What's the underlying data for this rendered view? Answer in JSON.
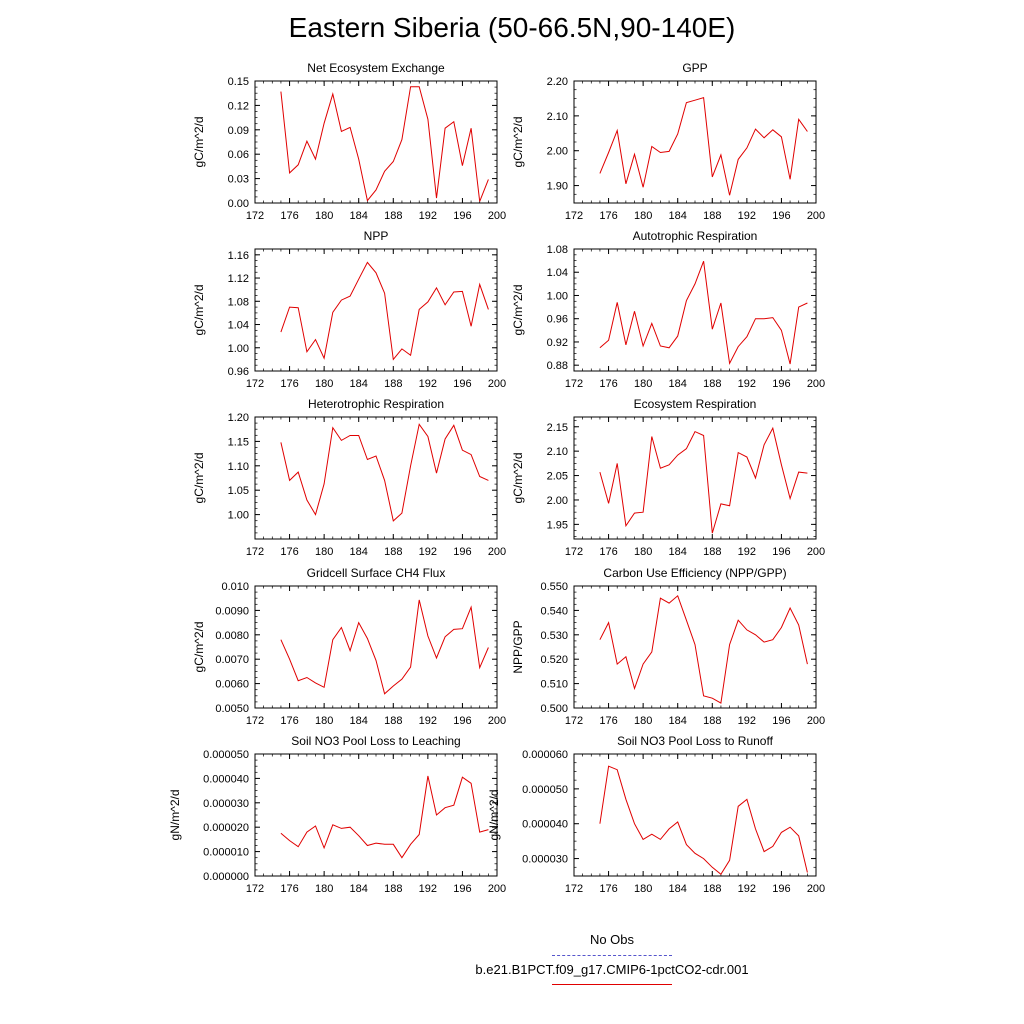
{
  "title": "Eastern Siberia (50-66.5N,90-140E)",
  "line_color": "#e00000",
  "legend": [
    {
      "label": "No Obs",
      "color": "#5555cc",
      "style": "dashed"
    },
    {
      "label": "b.e21.B1PCT.f09_g17.CMIP6-1pctCO2-cdr.001",
      "color": "#e00000",
      "style": "solid"
    }
  ],
  "chart_data": [
    {
      "type": "line",
      "title": "Net Ecosystem Exchange",
      "ylabel": "gC/m^2/d",
      "xlim": [
        172,
        200
      ],
      "xticks": [
        "172",
        "176",
        "180",
        "184",
        "188",
        "192",
        "196",
        "200"
      ],
      "ylim": [
        0,
        0.15
      ],
      "yticks": [
        "0.00",
        "0.03",
        "0.06",
        "0.09",
        "0.12",
        "0.15"
      ],
      "x": [
        175,
        176,
        177,
        178,
        179,
        180,
        181,
        182,
        183,
        184,
        185,
        186,
        187,
        188,
        189,
        190,
        191,
        192,
        193,
        194,
        195,
        196,
        197,
        198,
        199
      ],
      "series": [
        {
          "values": [
            0.137,
            0.037,
            0.047,
            0.076,
            0.054,
            0.098,
            0.134,
            0.088,
            0.093,
            0.054,
            0.003,
            0.016,
            0.039,
            0.051,
            0.078,
            0.143,
            0.143,
            0.103,
            0.006,
            0.092,
            0.1,
            0.046,
            0.092,
            0.002,
            0.029
          ]
        }
      ]
    },
    {
      "type": "line",
      "title": "GPP",
      "ylabel": "gC/m^2/d",
      "xlim": [
        172,
        200
      ],
      "xticks": [
        "172",
        "176",
        "180",
        "184",
        "188",
        "192",
        "196",
        "200"
      ],
      "ylim": [
        1.85,
        2.2
      ],
      "yticks": [
        "1.90",
        "2.00",
        "2.10",
        "2.20"
      ],
      "x": [
        175,
        176,
        177,
        178,
        179,
        180,
        181,
        182,
        183,
        184,
        185,
        186,
        187,
        188,
        189,
        190,
        191,
        192,
        193,
        194,
        195,
        196,
        197,
        198,
        199
      ],
      "series": [
        {
          "values": [
            1.935,
            1.995,
            2.058,
            1.905,
            1.99,
            1.895,
            2.012,
            1.995,
            1.998,
            2.048,
            2.138,
            2.145,
            2.152,
            1.925,
            1.988,
            1.872,
            1.975,
            2.008,
            2.062,
            2.037,
            2.06,
            2.04,
            1.918,
            2.09,
            2.055
          ]
        }
      ]
    },
    {
      "type": "line",
      "title": "NPP",
      "ylabel": "gC/m^2/d",
      "xlim": [
        172,
        200
      ],
      "xticks": [
        "172",
        "176",
        "180",
        "184",
        "188",
        "192",
        "196",
        "200"
      ],
      "ylim": [
        0.96,
        1.17
      ],
      "yticks": [
        "0.96",
        "1.00",
        "1.04",
        "1.08",
        "1.12",
        "1.16"
      ],
      "x": [
        175,
        176,
        177,
        178,
        179,
        180,
        181,
        182,
        183,
        184,
        185,
        186,
        187,
        188,
        189,
        190,
        191,
        192,
        193,
        194,
        195,
        196,
        197,
        198,
        199
      ],
      "series": [
        {
          "values": [
            1.027,
            1.07,
            1.069,
            0.993,
            1.014,
            0.982,
            1.061,
            1.082,
            1.089,
            1.118,
            1.147,
            1.129,
            1.094,
            0.98,
            0.998,
            0.987,
            1.066,
            1.079,
            1.103,
            1.074,
            1.096,
            1.097,
            1.037,
            1.109,
            1.066
          ]
        }
      ]
    },
    {
      "type": "line",
      "title": "Autotrophic Respiration",
      "ylabel": "gC/m^2/d",
      "xlim": [
        172,
        200
      ],
      "xticks": [
        "172",
        "176",
        "180",
        "184",
        "188",
        "192",
        "196",
        "200"
      ],
      "ylim": [
        0.87,
        1.08
      ],
      "yticks": [
        "0.88",
        "0.92",
        "0.96",
        "1.00",
        "1.04",
        "1.08"
      ],
      "x": [
        175,
        176,
        177,
        178,
        179,
        180,
        181,
        182,
        183,
        184,
        185,
        186,
        187,
        188,
        189,
        190,
        191,
        192,
        193,
        194,
        195,
        196,
        197,
        198,
        199
      ],
      "series": [
        {
          "values": [
            0.91,
            0.923,
            0.988,
            0.915,
            0.973,
            0.913,
            0.952,
            0.913,
            0.91,
            0.93,
            0.991,
            1.02,
            1.059,
            0.942,
            0.987,
            0.883,
            0.912,
            0.929,
            0.96,
            0.96,
            0.962,
            0.94,
            0.882,
            0.98,
            0.987
          ]
        }
      ]
    },
    {
      "type": "line",
      "title": "Heterotrophic Respiration",
      "ylabel": "gC/m^2/d",
      "xlim": [
        172,
        200
      ],
      "xticks": [
        "172",
        "176",
        "180",
        "184",
        "188",
        "192",
        "196",
        "200"
      ],
      "ylim": [
        0.95,
        1.2
      ],
      "yticks": [
        "1.00",
        "1.05",
        "1.10",
        "1.15",
        "1.20"
      ],
      "x": [
        175,
        176,
        177,
        178,
        179,
        180,
        181,
        182,
        183,
        184,
        185,
        186,
        187,
        188,
        189,
        190,
        191,
        192,
        193,
        194,
        195,
        196,
        197,
        198,
        199
      ],
      "series": [
        {
          "values": [
            1.148,
            1.07,
            1.087,
            1.03,
            1.0,
            1.063,
            1.178,
            1.152,
            1.162,
            1.162,
            1.113,
            1.12,
            1.07,
            0.987,
            1.003,
            1.1,
            1.185,
            1.16,
            1.085,
            1.155,
            1.183,
            1.132,
            1.123,
            1.078,
            1.07
          ]
        }
      ]
    },
    {
      "type": "line",
      "title": "Ecosystem Respiration",
      "ylabel": "gC/m^2/d",
      "xlim": [
        172,
        200
      ],
      "xticks": [
        "172",
        "176",
        "180",
        "184",
        "188",
        "192",
        "196",
        "200"
      ],
      "ylim": [
        1.92,
        2.17
      ],
      "yticks": [
        "1.95",
        "2.00",
        "2.05",
        "2.10",
        "2.15"
      ],
      "x": [
        175,
        176,
        177,
        178,
        179,
        180,
        181,
        182,
        183,
        184,
        185,
        186,
        187,
        188,
        189,
        190,
        191,
        192,
        193,
        194,
        195,
        196,
        197,
        198,
        199
      ],
      "series": [
        {
          "values": [
            2.057,
            1.993,
            2.075,
            1.947,
            1.973,
            1.975,
            2.13,
            2.065,
            2.072,
            2.092,
            2.105,
            2.14,
            2.132,
            1.932,
            1.992,
            1.988,
            2.097,
            2.088,
            2.045,
            2.113,
            2.147,
            2.072,
            2.003,
            2.057,
            2.055
          ]
        }
      ]
    },
    {
      "type": "line",
      "title": "Gridcell Surface CH4 Flux",
      "ylabel": "gC/m^2/d",
      "xlim": [
        172,
        200
      ],
      "xticks": [
        "172",
        "176",
        "180",
        "184",
        "188",
        "192",
        "196",
        "200"
      ],
      "ylim": [
        0.005,
        0.01
      ],
      "yticks": [
        "0.0050",
        "0.0060",
        "0.0070",
        "0.0080",
        "0.0090",
        "0.010"
      ],
      "x": [
        175,
        176,
        177,
        178,
        179,
        180,
        181,
        182,
        183,
        184,
        185,
        186,
        187,
        188,
        189,
        190,
        191,
        192,
        193,
        194,
        195,
        196,
        197,
        198,
        199
      ],
      "series": [
        {
          "values": [
            0.0078,
            0.007,
            0.00612,
            0.00625,
            0.00603,
            0.00585,
            0.0078,
            0.0083,
            0.00735,
            0.0085,
            0.00785,
            0.00695,
            0.00558,
            0.0059,
            0.00618,
            0.00668,
            0.00943,
            0.00795,
            0.00705,
            0.00792,
            0.00822,
            0.00825,
            0.00913,
            0.00665,
            0.00748
          ]
        }
      ]
    },
    {
      "type": "line",
      "title": "Carbon Use Efficiency (NPP/GPP)",
      "ylabel": "NPP/GPP",
      "xlim": [
        172,
        200
      ],
      "xticks": [
        "172",
        "176",
        "180",
        "184",
        "188",
        "192",
        "196",
        "200"
      ],
      "ylim": [
        0.5,
        0.55
      ],
      "yticks": [
        "0.500",
        "0.510",
        "0.520",
        "0.530",
        "0.540",
        "0.550"
      ],
      "x": [
        175,
        176,
        177,
        178,
        179,
        180,
        181,
        182,
        183,
        184,
        185,
        186,
        187,
        188,
        189,
        190,
        191,
        192,
        193,
        194,
        195,
        196,
        197,
        198,
        199
      ],
      "series": [
        {
          "values": [
            0.528,
            0.535,
            0.518,
            0.521,
            0.508,
            0.518,
            0.523,
            0.545,
            0.543,
            0.546,
            0.536,
            0.526,
            0.505,
            0.504,
            0.502,
            0.526,
            0.536,
            0.532,
            0.53,
            0.527,
            0.528,
            0.533,
            0.541,
            0.534,
            0.518
          ]
        }
      ]
    },
    {
      "type": "line",
      "title": "Soil NO3 Pool Loss to Leaching",
      "ylabel": "gN/m^2/d",
      "xlim": [
        172,
        200
      ],
      "xticks": [
        "172",
        "176",
        "180",
        "184",
        "188",
        "192",
        "196",
        "200"
      ],
      "ylim": [
        0.0,
        5e-05
      ],
      "yticks": [
        "0.000000",
        "0.000010",
        "0.000020",
        "0.000030",
        "0.000040",
        "0.000050"
      ],
      "x": [
        175,
        176,
        177,
        178,
        179,
        180,
        181,
        182,
        183,
        184,
        185,
        186,
        187,
        188,
        189,
        190,
        191,
        192,
        193,
        194,
        195,
        196,
        197,
        198,
        199
      ],
      "series": [
        {
          "values": [
            1.75e-05,
            1.45e-05,
            1.2e-05,
            1.8e-05,
            2.05e-05,
            1.15e-05,
            2.1e-05,
            1.95e-05,
            2e-05,
            1.65e-05,
            1.25e-05,
            1.35e-05,
            1.3e-05,
            1.3e-05,
            7.5e-06,
            1.3e-05,
            1.7e-05,
            4.1e-05,
            2.5e-05,
            2.8e-05,
            2.9e-05,
            4.05e-05,
            3.8e-05,
            1.8e-05,
            1.9e-05
          ]
        }
      ]
    },
    {
      "type": "line",
      "title": "Soil NO3 Pool Loss to Runoff",
      "ylabel": "gN/m^2/d",
      "xlim": [
        172,
        200
      ],
      "xticks": [
        "172",
        "176",
        "180",
        "184",
        "188",
        "192",
        "196",
        "200"
      ],
      "ylim": [
        2.5e-05,
        6e-05
      ],
      "yticks": [
        "0.000030",
        "0.000040",
        "0.000050",
        "0.000060"
      ],
      "x": [
        175,
        176,
        177,
        178,
        179,
        180,
        181,
        182,
        183,
        184,
        185,
        186,
        187,
        188,
        189,
        190,
        191,
        192,
        193,
        194,
        195,
        196,
        197,
        198,
        199
      ],
      "series": [
        {
          "values": [
            4e-05,
            5.65e-05,
            5.55e-05,
            4.7e-05,
            4e-05,
            3.55e-05,
            3.7e-05,
            3.55e-05,
            3.85e-05,
            4.05e-05,
            3.4e-05,
            3.15e-05,
            3e-05,
            2.75e-05,
            2.55e-05,
            2.95e-05,
            4.5e-05,
            4.7e-05,
            3.85e-05,
            3.2e-05,
            3.35e-05,
            3.75e-05,
            3.9e-05,
            3.65e-05,
            2.6e-05
          ]
        }
      ]
    }
  ]
}
